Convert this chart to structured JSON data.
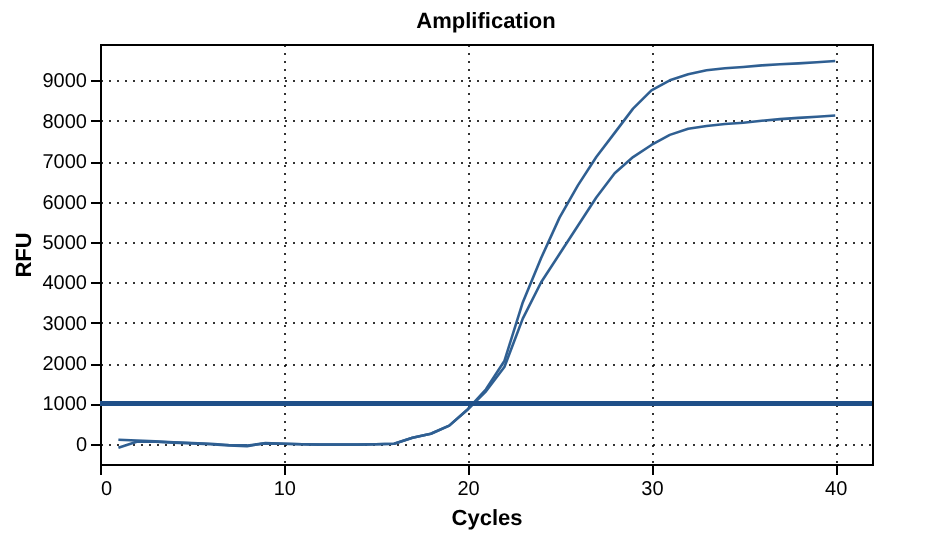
{
  "chart_data": {
    "type": "line",
    "title": "Amplification",
    "xlabel": "Cycles",
    "ylabel": "RFU",
    "x": [
      1,
      2,
      3,
      4,
      5,
      6,
      7,
      8,
      9,
      10,
      11,
      12,
      13,
      14,
      15,
      16,
      17,
      18,
      19,
      20,
      21,
      22,
      23,
      24,
      25,
      26,
      27,
      28,
      29,
      30,
      31,
      32,
      33,
      34,
      35,
      36,
      37,
      38,
      39,
      40
    ],
    "series": [
      {
        "color": "#2f5f92",
        "values": [
          -100,
          50,
          50,
          30,
          10,
          -10,
          -40,
          -60,
          20,
          0,
          -10,
          -20,
          -20,
          -20,
          -10,
          0,
          150,
          250,
          450,
          850,
          1350,
          2050,
          3500,
          4600,
          5600,
          6400,
          7100,
          7700,
          8300,
          8750,
          9000,
          9150,
          9250,
          9300,
          9330,
          9370,
          9400,
          9420,
          9450,
          9480
        ]
      },
      {
        "color": "#2f5f92",
        "values": [
          100,
          80,
          60,
          40,
          20,
          0,
          -30,
          -40,
          10,
          0,
          -10,
          -20,
          -20,
          -20,
          -10,
          0,
          150,
          250,
          450,
          850,
          1300,
          1900,
          3100,
          4000,
          4700,
          5400,
          6100,
          6700,
          7100,
          7400,
          7650,
          7800,
          7870,
          7920,
          7950,
          8000,
          8040,
          8070,
          8100,
          8130
        ]
      }
    ],
    "ref_lines": [
      {
        "axis": "y",
        "value": 1000,
        "color": "#1f4f88"
      }
    ],
    "xlim": [
      0,
      42
    ],
    "xticks": [
      0,
      10,
      20,
      30,
      40
    ],
    "ylim": [
      -500,
      9900
    ],
    "yticks": [
      0,
      1000,
      2000,
      3000,
      4000,
      5000,
      6000,
      7000,
      8000,
      9000
    ],
    "grid": true,
    "legend": false,
    "marker": "none",
    "line_style": "solid"
  }
}
